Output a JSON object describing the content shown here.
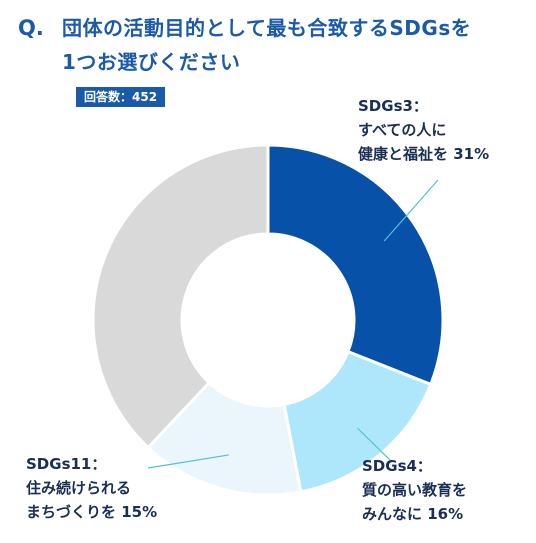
{
  "question": {
    "mark": "Q.",
    "line1": "団体の活動目的として最も合致するSDGsを",
    "line2": "1つお選びください"
  },
  "badge": "回答数：452",
  "colors": {
    "accent": "#1a5aa8",
    "sdg3": "#0752a8",
    "sdg4": "#aee6fb",
    "sdg11": "#eaf6fc",
    "other": "#d9d9d9",
    "leader": "#4cc3d3"
  },
  "labels": {
    "sdg3": [
      "SDGs3：",
      "すべての人に",
      "健康と福祉を 31%"
    ],
    "sdg4": [
      "SDGs4：",
      "質の高い教育を",
      "みんなに 16%"
    ],
    "sdg11": [
      "SDGs11：",
      "住み続けられる",
      "まちづくりを 15%"
    ]
  },
  "chart_data": {
    "type": "pie",
    "donut": true,
    "categories": [
      "SDGs3：すべての人に健康と福祉を",
      "SDGs4：質の高い教育をみんなに",
      "SDGs11：住み続けられるまちづくりを",
      ""
    ],
    "values": [
      31,
      16,
      15,
      38
    ],
    "unit": "%",
    "colors": [
      "#0752a8",
      "#aee6fb",
      "#eaf6fc",
      "#d9d9d9"
    ]
  }
}
